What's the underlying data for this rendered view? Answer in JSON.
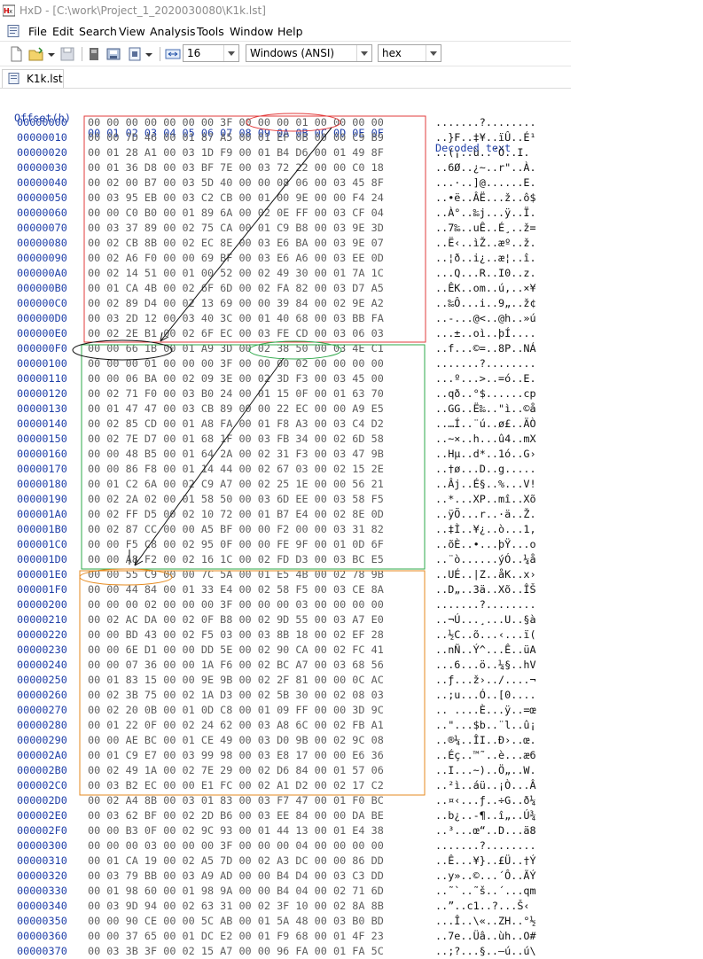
{
  "window": {
    "title": "HxD - [C:\\work\\Project_1_2020030080\\K1k.lst]"
  },
  "menu": [
    "File",
    "Edit",
    "Search",
    "View",
    "Analysis",
    "Tools",
    "Window",
    "Help"
  ],
  "toolbar": {
    "bytes_per_row": "16",
    "charset": "Windows (ANSI)",
    "display": "hex"
  },
  "tab": {
    "label": "K1k.lst"
  },
  "header": {
    "offset": "Offset(h)",
    "columns": "00 01 02 03 04 05 06 07 08 09 0A 0B 0C 0D 0E 0F",
    "decoded": "Decoded text"
  },
  "rows": [
    {
      "o": "00000000",
      "b": "00 00 00 00 00 00 00 3F 00 00 00 01 00 00 00 00",
      "t": ".......?........"
    },
    {
      "o": "00000010",
      "b": "00 00 7D 46 00 01 87 A5 00 01 EF 0B 00 00 C9 B9",
      "t": "..}F..‡¥..ïÛ..É¹"
    },
    {
      "o": "00000020",
      "b": "00 01 28 A1 00 03 1D F9 00 01 B4 D6 00 01 49 8F",
      "t": "..(¡..ù..´Ö..I."
    },
    {
      "o": "00000030",
      "b": "00 01 36 D8 00 03 BF 7E 00 03 72 22 00 00 C0 18",
      "t": "..6Ø..¿~..r\"..À."
    },
    {
      "o": "00000040",
      "b": "00 02 00 B7 00 03 5D 40 00 00 08 06 00 03 45 8F",
      "t": "...·..]@......E."
    },
    {
      "o": "00000050",
      "b": "00 03 95 EB 00 03 C2 CB 00 01 00 9E 00 00 F4 24",
      "t": "..•ë..ÂË...ž..ô$"
    },
    {
      "o": "00000060",
      "b": "00 00 C0 B0 00 01 89 6A 00 02 0E FF 00 03 CF 04",
      "t": "..À°..‰j...ÿ..Ï."
    },
    {
      "o": "00000070",
      "b": "00 03 37 89 00 02 75 CA 00 01 C9 B8 00 03 9E 3D",
      "t": "..7‰..uÊ..É¸..ž="
    },
    {
      "o": "00000080",
      "b": "00 02 CB 8B 00 02 EC 8E 00 03 E6 BA 00 03 9E 07",
      "t": "..Ë‹..ìŽ..æº..ž."
    },
    {
      "o": "00000090",
      "b": "00 02 A6 F0 00 00 69 BF 00 03 E6 A6 00 03 EE 0D",
      "t": "..¦ð..i¿..æ¦..î."
    },
    {
      "o": "000000A0",
      "b": "00 02 14 51 00 01 00 52 00 02 49 30 00 01 7A 1C",
      "t": "...Q...R..I0..z."
    },
    {
      "o": "000000B0",
      "b": "00 01 CA 4B 00 02 6F 6D 00 02 FA 82 00 03 D7 A5",
      "t": "..ÊK..om..ú‚..×¥"
    },
    {
      "o": "000000C0",
      "b": "00 02 89 D4 00 02 13 69 00 00 39 84 00 02 9E A2",
      "t": "..‰Ô...i..9„..ž¢"
    },
    {
      "o": "000000D0",
      "b": "00 03 2D 12 00 03 40 3C 00 01 40 68 00 03 BB FA",
      "t": "..-...@<..@h..»ú"
    },
    {
      "o": "000000E0",
      "b": "00 02 2E B1 00 02 6F EC 00 03 FE CD 00 03 06 03",
      "t": "...±..oì..þÍ...."
    },
    {
      "o": "000000F0",
      "b": "00 00 66 1B 00 01 A9 3D 00 02 38 50 00 03 4E C1",
      "t": "..f...©=..8P..NÁ"
    },
    {
      "o": "00000100",
      "b": "00 00 00 01 00 00 00 3F 00 00 00 02 00 00 00 00",
      "t": ".......?........"
    },
    {
      "o": "00000110",
      "b": "00 00 06 BA 00 02 09 3E 00 02 3D F3 00 03 45 00",
      "t": "...º...>..=ó..E."
    },
    {
      "o": "00000120",
      "b": "00 02 71 F0 00 03 B0 24 00 01 15 0F 00 01 63 70",
      "t": "..qð..°$......cp"
    },
    {
      "o": "00000130",
      "b": "00 01 47 47 00 03 CB 89 00 00 22 EC 00 00 A9 E5",
      "t": "..GG..Ë‰..\"ì..©å"
    },
    {
      "o": "00000140",
      "b": "00 02 85 CD 00 01 A8 FA 00 01 F8 A3 00 03 C4 D2",
      "t": "..…Í..¨ú..ø£..ÄÒ"
    },
    {
      "o": "00000150",
      "b": "00 02 7E D7 00 01 68 1F 00 03 FB 34 00 02 6D 58",
      "t": "..~×..h...û4..mX"
    },
    {
      "o": "00000160",
      "b": "00 00 48 B5 00 01 64 2A 00 02 31 F3 00 03 47 9B",
      "t": "..Hµ..d*..1ó..G›"
    },
    {
      "o": "00000170",
      "b": "00 00 86 F8 00 01 14 44 00 02 67 03 00 02 15 2E",
      "t": "..†ø...D..g....."
    },
    {
      "o": "00000180",
      "b": "00 01 C2 6A 00 02 C9 A7 00 02 25 1E 00 00 56 21",
      "t": "..Âj..É§..%...V!"
    },
    {
      "o": "00000190",
      "b": "00 02 2A 02 00 01 58 50 00 03 6D EE 00 03 58 F5",
      "t": "..*...XP..mî..Xõ"
    },
    {
      "o": "000001A0",
      "b": "00 02 FF D5 00 02 10 72 00 01 B7 E4 00 02 8E 0D",
      "t": "..ÿÕ...r..·ä..Ž."
    },
    {
      "o": "000001B0",
      "b": "00 02 87 CC 00 00 A5 BF 00 00 F2 00 00 03 31 82",
      "t": "..‡Ì..¥¿..ò...1‚"
    },
    {
      "o": "000001C0",
      "b": "00 00 F5 C8 00 02 95 0F 00 00 FE 9F 00 01 0D 6F",
      "t": "..õÈ..•...þŸ...o"
    },
    {
      "o": "000001D0",
      "b": "00 00 A8 F2 00 02 16 1C 00 02 FD D3 00 03 BC E5",
      "t": "..¨ò......ýÓ..¼å"
    },
    {
      "o": "000001E0",
      "b": "00 00 55 C9 00 00 7C 5A 00 01 E5 4B 00 02 78 9B",
      "t": "..UÉ..|Z..åK..x›"
    },
    {
      "o": "000001F0",
      "b": "00 00 44 84 00 01 33 E4 00 02 58 F5 00 03 CE 8A",
      "t": "..D„..3ä..Xõ..ÎŠ"
    },
    {
      "o": "00000200",
      "b": "00 00 00 02 00 00 00 3F 00 00 00 03 00 00 00 00",
      "t": ".......?........"
    },
    {
      "o": "00000210",
      "b": "00 02 AC DA 00 02 0F B8 00 02 9D 55 00 03 A7 E0",
      "t": "..¬Ú...¸...U..§à"
    },
    {
      "o": "00000220",
      "b": "00 00 BD 43 00 02 F5 03 00 03 8B 18 00 02 EF 28",
      "t": "..½C..õ...‹...ï("
    },
    {
      "o": "00000230",
      "b": "00 00 6E D1 00 00 DD 5E 00 02 90 CA 00 02 FC 41",
      "t": "..nÑ..Ý^...Ê..üA"
    },
    {
      "o": "00000240",
      "b": "00 00 07 36 00 00 1A F6 00 02 BC A7 00 03 68 56",
      "t": "...6...ö..¼§..hV"
    },
    {
      "o": "00000250",
      "b": "00 01 83 15 00 00 9E 9B 00 02 2F 81 00 00 0C AC",
      "t": "..ƒ...ž›../....¬"
    },
    {
      "o": "00000260",
      "b": "00 02 3B 75 00 02 1A D3 00 02 5B 30 00 02 08 03",
      "t": "..;u...Ó..[0...."
    },
    {
      "o": "00000270",
      "b": "00 02 20 0B 00 01 0D C8 00 01 09 FF 00 00 3D 9C",
      "t": ".. ....È...ÿ..=œ"
    },
    {
      "o": "00000280",
      "b": "00 01 22 0F 00 02 24 62 00 03 A8 6C 00 02 FB A1",
      "t": "..\"...$b..¨l..û¡"
    },
    {
      "o": "00000290",
      "b": "00 00 AE BC 00 01 CE 49 00 03 D0 9B 00 02 9C 08",
      "t": "..®¼..ÎI..Ð›..œ."
    },
    {
      "o": "000002A0",
      "b": "00 01 C9 E7 00 03 99 98 00 03 E8 17 00 00 E6 36",
      "t": "..Éç..™˜..è...æ6"
    },
    {
      "o": "000002B0",
      "b": "00 02 49 1A 00 02 7E 29 00 02 D6 84 00 01 57 06",
      "t": "..I...~)..Ö„..W."
    },
    {
      "o": "000002C0",
      "b": "00 03 B2 EC 00 00 E1 FC 00 02 A1 D2 00 02 17 C2",
      "t": "..²ì..áü..¡Ò...Â"
    },
    {
      "o": "000002D0",
      "b": "00 02 A4 8B 00 03 01 83 00 03 F7 47 00 01 F0 BC",
      "t": "..¤‹...ƒ..÷G..ð¼"
    },
    {
      "o": "000002E0",
      "b": "00 03 62 BF 00 02 2D B6 00 03 EE 84 00 00 DA BE",
      "t": "..b¿..-¶..î„..Ú¾"
    },
    {
      "o": "000002F0",
      "b": "00 00 B3 0F 00 02 9C 93 00 01 44 13 00 01 E4 38",
      "t": "..³...œ“..D...ä8"
    },
    {
      "o": "00000300",
      "b": "00 00 00 03 00 00 00 3F 00 00 00 04 00 00 00 00",
      "t": ".......?........"
    },
    {
      "o": "00000310",
      "b": "00 01 CA 19 00 02 A5 7D 00 02 A3 DC 00 00 86 DD",
      "t": "..Ê...¥}..£Ü..†Ý"
    },
    {
      "o": "00000320",
      "b": "00 03 79 BB 00 03 A9 AD 00 00 B4 D4 00 03 C3 DD",
      "t": "..y»..©...´Ô..ÃÝ"
    },
    {
      "o": "00000330",
      "b": "00 01 98 60 00 01 98 9A 00 00 B4 04 00 02 71 6D",
      "t": "..˜`..˜š..´...qm"
    },
    {
      "o": "00000340",
      "b": "00 03 9D 94 00 02 63 31 00 02 3F 10 00 02 8A 8B",
      "t": "..”..c1..?...Š‹"
    },
    {
      "o": "00000350",
      "b": "00 00 90 CE 00 00 5C AB 00 01 5A 48 00 03 B0 BD",
      "t": "...Î..\\«..ZH..°½"
    },
    {
      "o": "00000360",
      "b": "00 00 37 65 00 01 DC E2 00 01 F9 68 00 01 4F 23",
      "t": "..7e..Üâ..ùh..O#"
    },
    {
      "o": "00000370",
      "b": "00 03 3B 3F 00 02 15 A7 00 00 96 FA 00 01 FA 5C",
      "t": "..;?...§..–ú..ú\\"
    }
  ]
}
